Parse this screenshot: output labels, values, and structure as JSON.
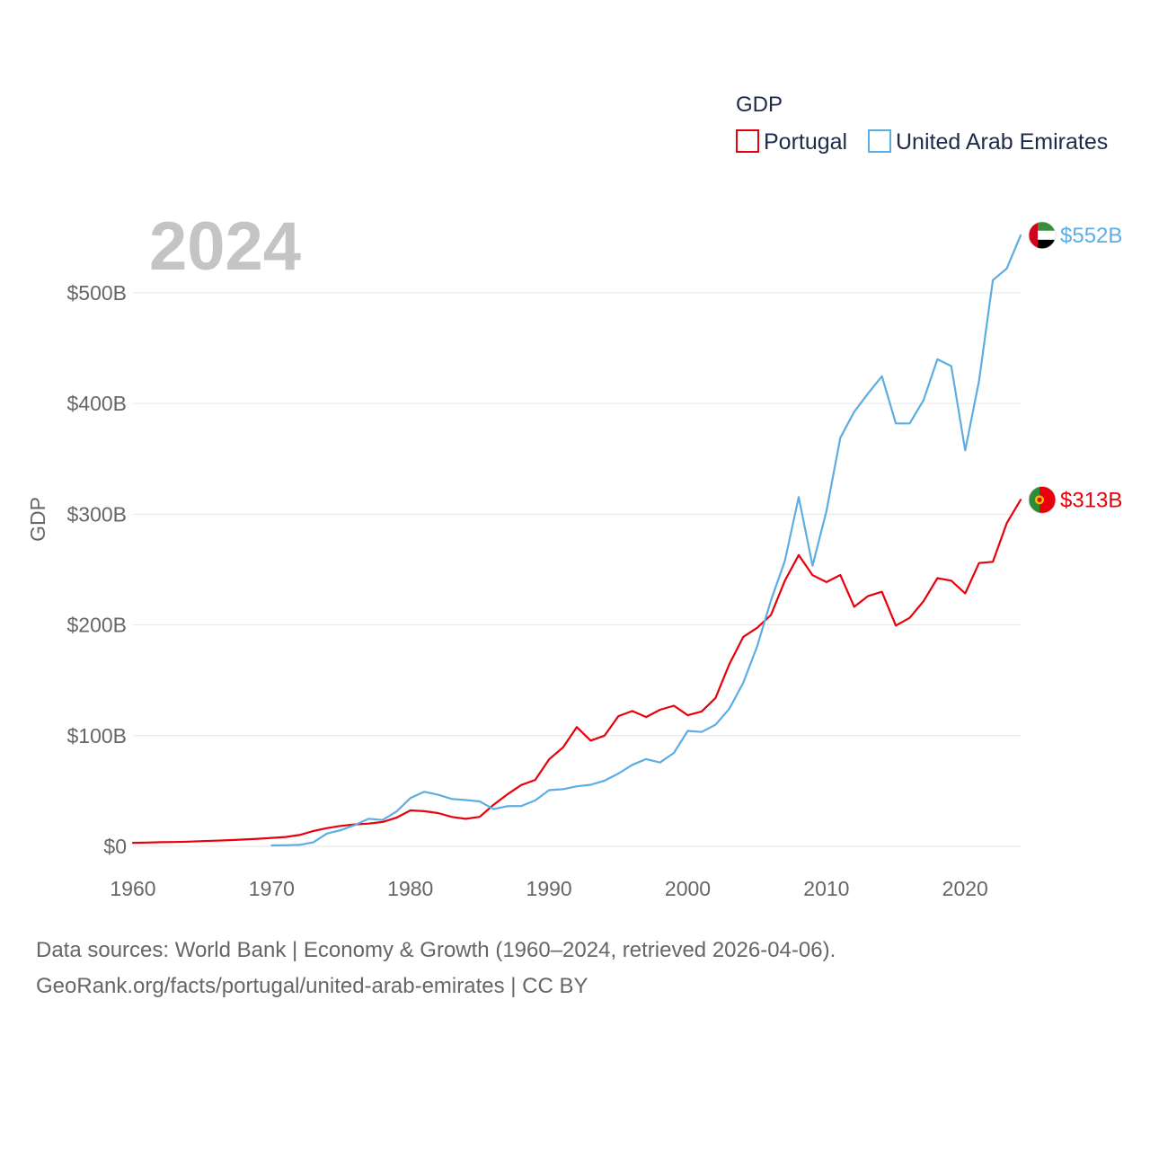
{
  "chart_data": {
    "type": "line",
    "ylabel": "GDP",
    "xlabel": "",
    "xlim": [
      1960,
      2024
    ],
    "ylim": [
      0,
      560
    ],
    "yunit": "$B",
    "x_ticks": [
      1960,
      1970,
      1980,
      1990,
      2000,
      2010,
      2020
    ],
    "x_tick_labels": [
      "1960",
      "1970",
      "1980",
      "1990",
      "2000",
      "2010",
      "2020"
    ],
    "y_ticks": [
      0,
      100,
      200,
      300,
      400,
      500
    ],
    "y_tick_labels": [
      "$0",
      "$100B",
      "$200B",
      "$300B",
      "$400B",
      "$500B"
    ],
    "grid": true,
    "legend": {
      "title": "GDP",
      "position": "top-right"
    },
    "current_year": "2024",
    "series": [
      {
        "name": "Portugal",
        "color": "#e8000b",
        "end_label": "$313B",
        "flag_icon": "portugal-flag-icon",
        "x": [
          1960,
          1961,
          1962,
          1963,
          1964,
          1965,
          1966,
          1967,
          1968,
          1969,
          1970,
          1971,
          1972,
          1973,
          1974,
          1975,
          1976,
          1977,
          1978,
          1979,
          1980,
          1981,
          1982,
          1983,
          1984,
          1985,
          1986,
          1987,
          1988,
          1989,
          1990,
          1991,
          1992,
          1993,
          1994,
          1995,
          1996,
          1997,
          1998,
          1999,
          2000,
          2001,
          2002,
          2003,
          2004,
          2005,
          2006,
          2007,
          2008,
          2009,
          2010,
          2011,
          2012,
          2013,
          2014,
          2015,
          2016,
          2017,
          2018,
          2019,
          2020,
          2021,
          2022,
          2023,
          2024
        ],
        "y": [
          3.2,
          3.4,
          3.7,
          3.9,
          4.2,
          4.7,
          5.1,
          5.6,
          6.2,
          6.8,
          7.6,
          8.4,
          10.2,
          13.8,
          16.5,
          18.5,
          19.8,
          20.5,
          22.0,
          25.9,
          32.5,
          31.7,
          30.0,
          26.5,
          24.8,
          26.6,
          37.6,
          47.0,
          55.4,
          60.0,
          78.6,
          89.3,
          107.7,
          95.5,
          100.0,
          117.6,
          122.2,
          116.8,
          123.4,
          127.0,
          118.4,
          121.8,
          134.0,
          164.6,
          189.2,
          197.4,
          209.0,
          240.0,
          263.1,
          244.9,
          238.7,
          245.1,
          216.4,
          226.1,
          229.9,
          199.4,
          206.4,
          221.4,
          242.3,
          240.0,
          228.5,
          255.9,
          257.0,
          292.0,
          313.0
        ]
      },
      {
        "name": "United Arab Emirates",
        "color": "#5dade2",
        "end_label": "$552B",
        "flag_icon": "uae-flag-icon",
        "x": [
          1970,
          1971,
          1972,
          1973,
          1974,
          1975,
          1976,
          1977,
          1978,
          1979,
          1980,
          1981,
          1982,
          1983,
          1984,
          1985,
          1986,
          1987,
          1988,
          1989,
          1990,
          1991,
          1992,
          1993,
          1994,
          1995,
          1996,
          1997,
          1998,
          1999,
          2000,
          2001,
          2002,
          2003,
          2004,
          2005,
          2006,
          2007,
          2008,
          2009,
          2010,
          2011,
          2012,
          2013,
          2014,
          2015,
          2016,
          2017,
          2018,
          2019,
          2020,
          2021,
          2022,
          2023,
          2024
        ],
        "y": [
          0.8,
          1.0,
          1.3,
          3.6,
          11.6,
          14.7,
          19.2,
          24.9,
          23.8,
          31.4,
          43.6,
          49.3,
          46.6,
          42.8,
          41.8,
          40.6,
          33.6,
          36.3,
          36.4,
          41.5,
          50.7,
          51.6,
          54.2,
          55.6,
          59.3,
          65.7,
          73.6,
          78.8,
          75.7,
          84.4,
          104.3,
          103.3,
          109.8,
          124.3,
          147.8,
          180.6,
          222.1,
          257.9,
          315.5,
          253.5,
          303.0,
          369.0,
          392.6,
          409.1,
          424.6,
          382.0,
          382.0,
          403.0,
          440.0,
          433.8,
          357.7,
          420.4,
          511.5,
          522.0,
          552.0
        ]
      }
    ]
  },
  "footer": {
    "line1": "Data sources: World Bank | Economy & Growth (1960–2024, retrieved 2026-04-06).",
    "line2": "GeoRank.org/facts/portugal/united-arab-emirates | CC BY"
  }
}
